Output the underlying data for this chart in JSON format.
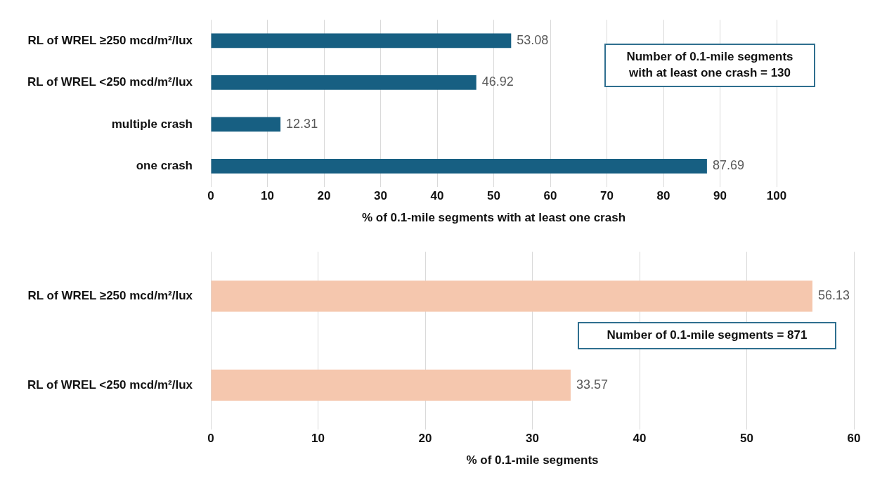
{
  "chart_data": [
    {
      "type": "bar",
      "orientation": "horizontal",
      "categories": [
        "RL of WREL ≥250 mcd/m²/lux",
        "RL of WREL <250 mcd/m²/lux",
        "multiple crash",
        "one crash"
      ],
      "values": [
        53.08,
        46.92,
        12.31,
        87.69
      ],
      "color": "#175f82",
      "data_labels": true,
      "xlim": [
        0,
        100
      ],
      "xticks": [
        0,
        10,
        20,
        30,
        40,
        50,
        60,
        70,
        80,
        90,
        100
      ],
      "grid": "x",
      "xlabel": "% of 0.1-mile segments with at least one crash",
      "annotations": [
        "Number of 0.1-mile segments with at least one crash = 130"
      ]
    },
    {
      "type": "bar",
      "orientation": "horizontal",
      "categories": [
        "RL of WREL ≥250 mcd/m²/lux",
        "RL of WREL <250 mcd/m²/lux"
      ],
      "values": [
        56.13,
        33.57
      ],
      "color": "#f5c7ae",
      "data_labels": true,
      "xlim": [
        0,
        60
      ],
      "xticks": [
        0,
        10,
        20,
        30,
        40,
        50,
        60
      ],
      "grid": "x",
      "xlabel": "% of 0.1-mile segments",
      "annotations": [
        "Number of 0.1-mile segments = 871"
      ]
    }
  ]
}
